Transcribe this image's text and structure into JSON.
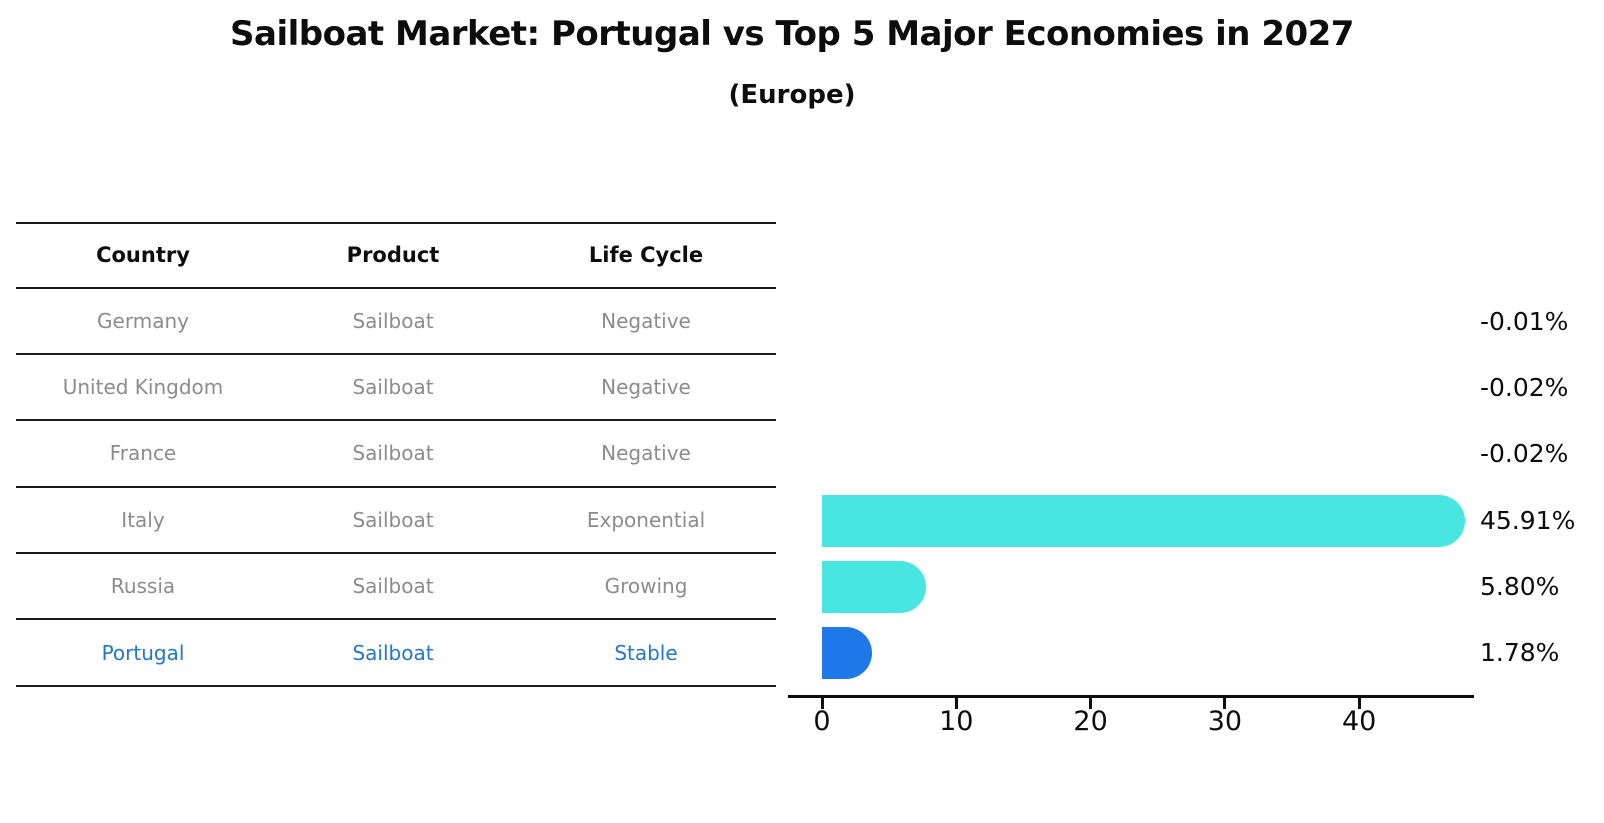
{
  "title": "Sailboat Market: Portugal vs Top 5 Major Economies in 2027",
  "subtitle": "(Europe)",
  "table": {
    "headers": {
      "country": "Country",
      "product": "Product",
      "life_cycle": "Life Cycle"
    },
    "rows": [
      {
        "country": "Germany",
        "product": "Sailboat",
        "life_cycle": "Negative",
        "highlight": false
      },
      {
        "country": "United Kingdom",
        "product": "Sailboat",
        "life_cycle": "Negative",
        "highlight": false
      },
      {
        "country": "France",
        "product": "Sailboat",
        "life_cycle": "Negative",
        "highlight": false
      },
      {
        "country": "Italy",
        "product": "Sailboat",
        "life_cycle": "Exponential",
        "highlight": false
      },
      {
        "country": "Russia",
        "product": "Sailboat",
        "life_cycle": "Growing",
        "highlight": false
      },
      {
        "country": "Portugal",
        "product": "Sailboat",
        "life_cycle": "Stable",
        "highlight": true
      }
    ]
  },
  "chart_data": {
    "type": "bar",
    "orientation": "horizontal",
    "categories": [
      "Germany",
      "United Kingdom",
      "France",
      "Italy",
      "Russia",
      "Portugal"
    ],
    "values": [
      -0.01,
      -0.02,
      -0.02,
      45.91,
      5.8,
      1.78
    ],
    "value_labels": [
      "-0.01%",
      "-0.02%",
      "-0.02%",
      "45.91%",
      "5.80%",
      "1.78%"
    ],
    "x_ticks": [
      0,
      10,
      20,
      30,
      40
    ],
    "x_tick_labels": [
      "0",
      "10",
      "20",
      "30",
      "40"
    ],
    "xlim": [
      0,
      48.5
    ],
    "grid": false,
    "legend": false,
    "bar_color": "#49E5E1",
    "highlight_category": "Portugal",
    "highlight_bar_color": "#1E78E8",
    "highlight_text_color": "#2176CD",
    "text_color": "#0d0d0d",
    "muted_text_color": "#8c8c8c"
  }
}
